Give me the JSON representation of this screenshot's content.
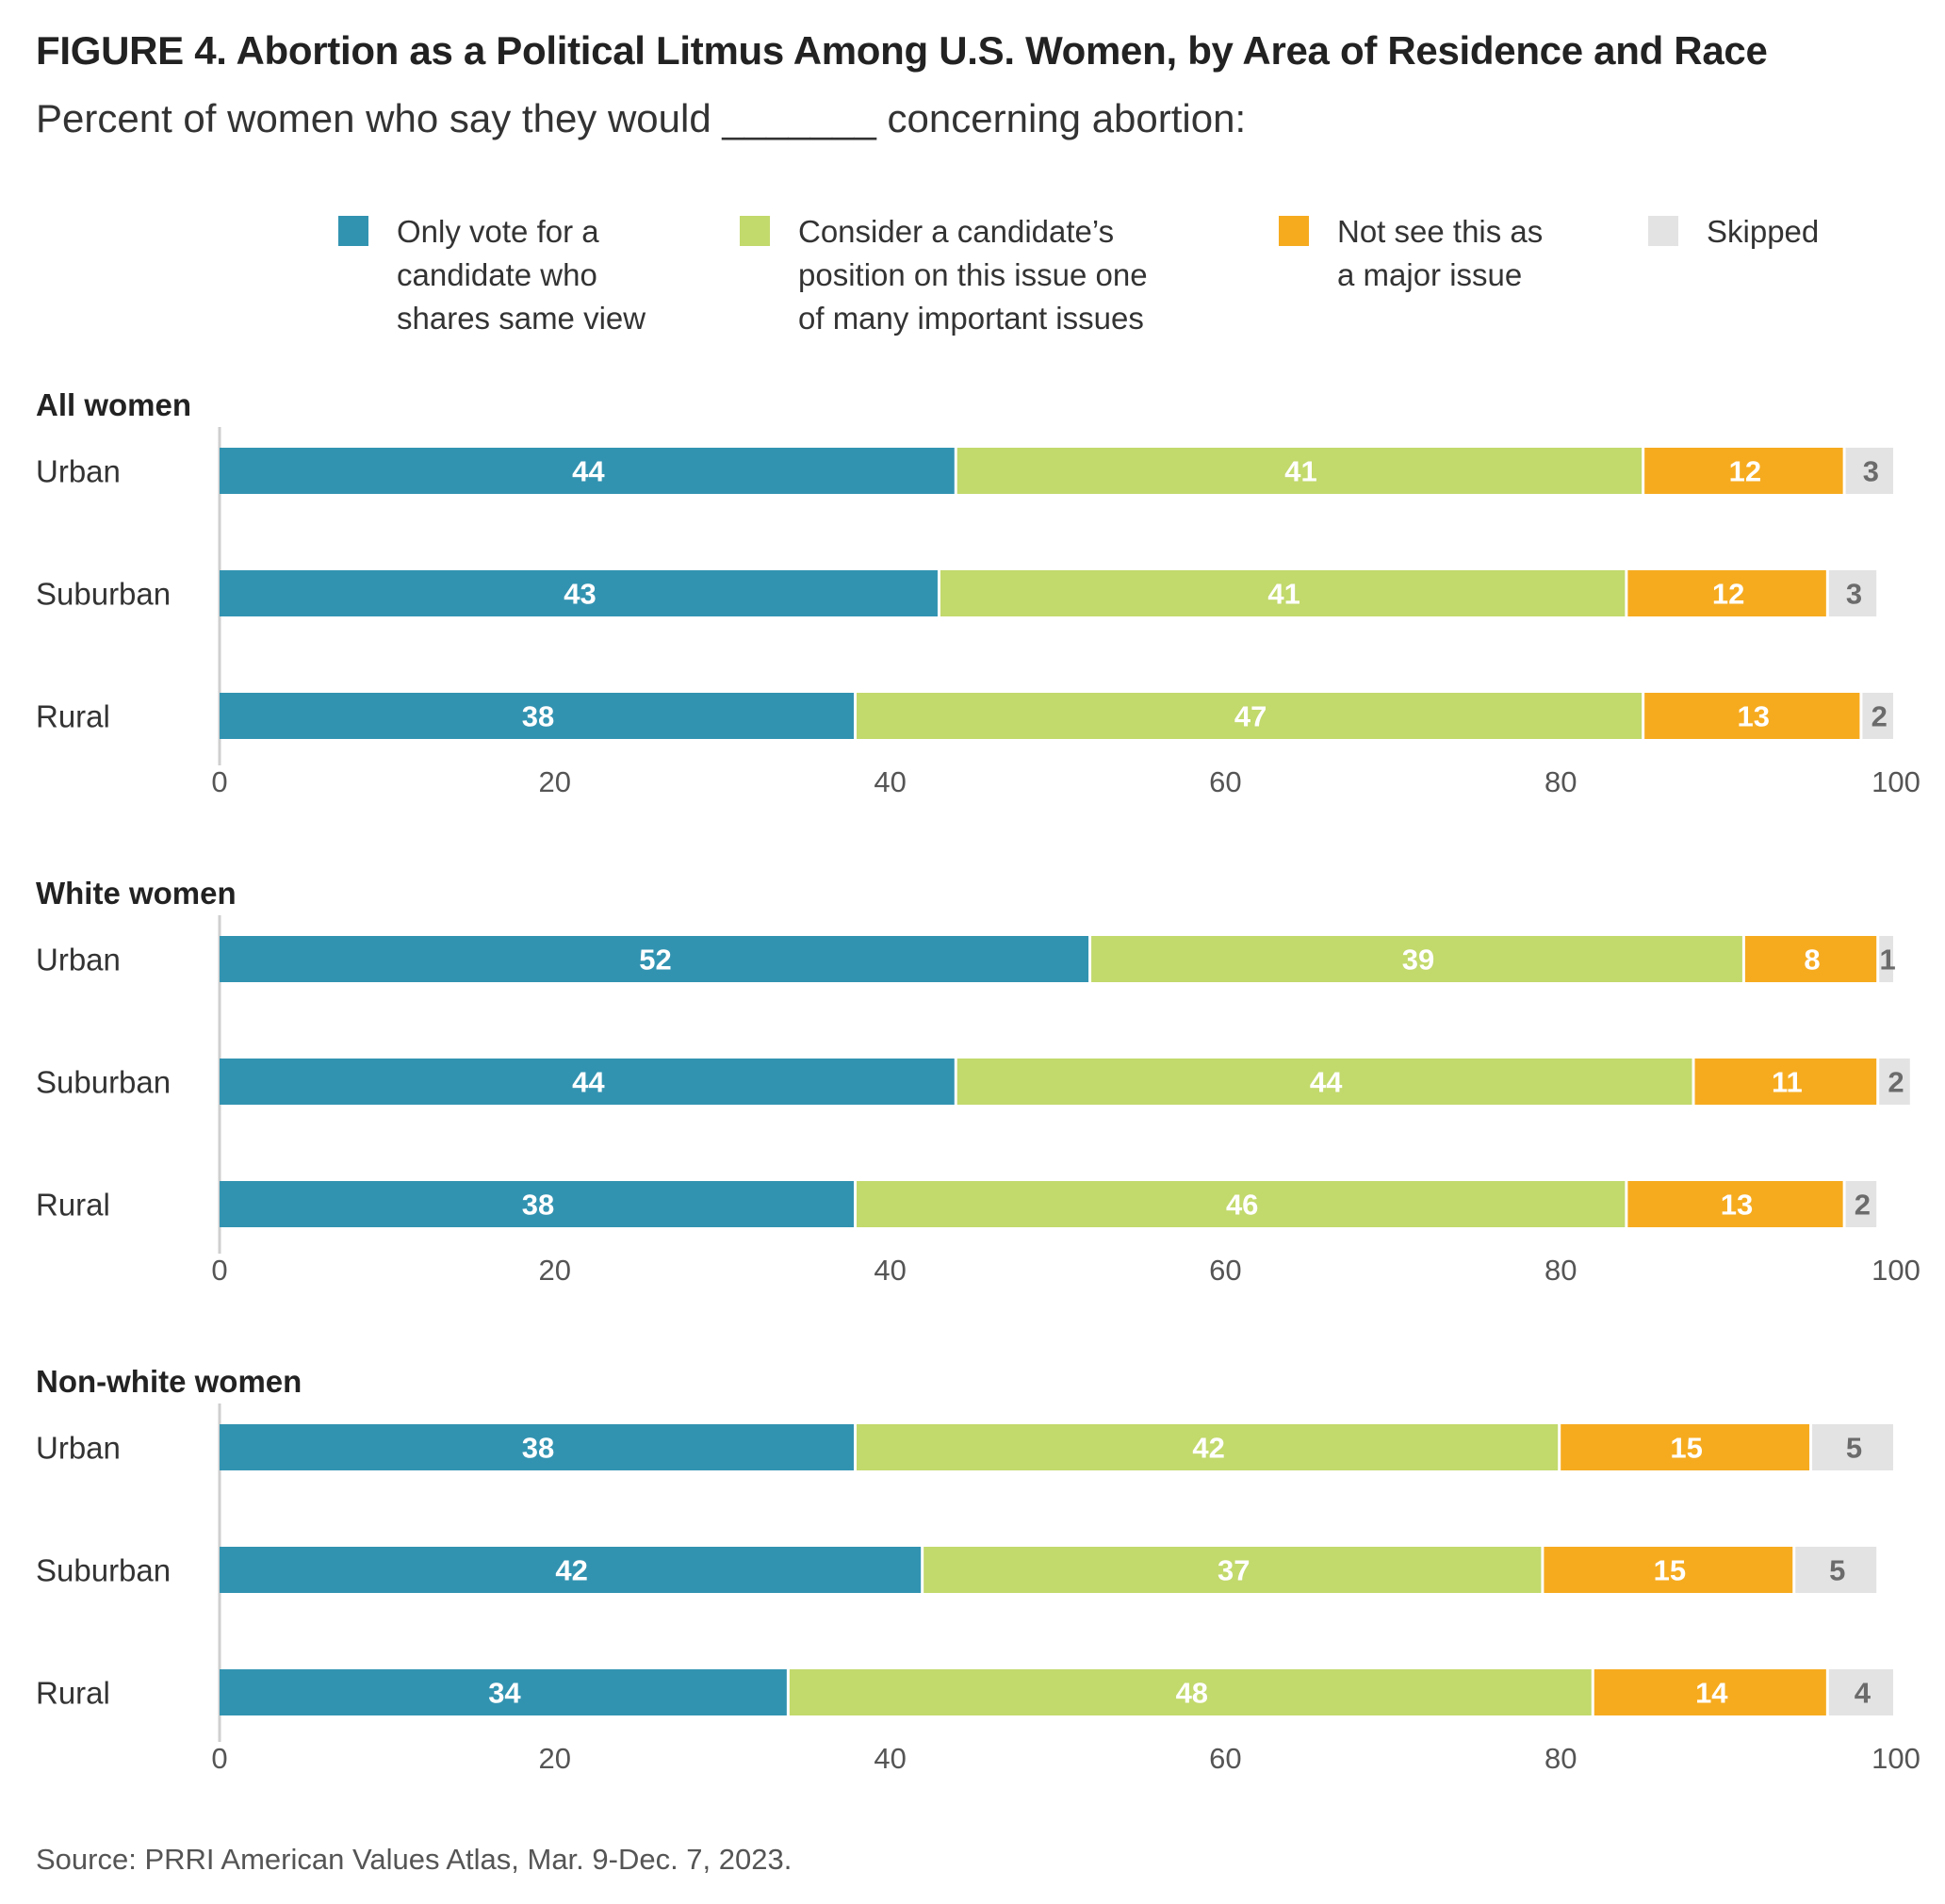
{
  "title": "FIGURE 4.  Abortion as a Political Litmus Among U.S. Women, by Area of Residence and Race",
  "subtitle": "Percent of women who say they would _______ concerning abortion:",
  "source": "Source: PRRI American Values Atlas, Mar. 9-Dec. 7, 2023.",
  "legend": [
    {
      "label": "Only vote for a\ncandidate who\nshares same view",
      "color": "#3293b1"
    },
    {
      "label": "Consider a candidate’s\nposition on this issue one\nof many important issues",
      "color": "#c2d96c"
    },
    {
      "label": "Not see this as\na major issue",
      "color": "#f6ab1f"
    },
    {
      "label": "Skipped",
      "color": "#e3e3e3"
    }
  ],
  "chart_data": {
    "type": "bar",
    "orientation": "horizontal",
    "stacked": true,
    "xlim": [
      0,
      100
    ],
    "xticks": [
      "0",
      "20",
      "40",
      "60",
      "80",
      "100"
    ],
    "series_names": [
      "Only vote for a candidate who shares same view",
      "Consider a candidate’s position on this issue one of many important issues",
      "Not see this as a major issue",
      "Skipped"
    ],
    "colors": [
      "#3293b1",
      "#c2d96c",
      "#f6ab1f",
      "#e3e3e3"
    ],
    "label_colors": [
      "#ffffff",
      "#ffffff",
      "#ffffff",
      "#6b6b6b"
    ],
    "panels": [
      {
        "title": "All women",
        "categories": [
          "Urban",
          "Suburban",
          "Rural"
        ],
        "values": [
          [
            44,
            41,
            12,
            3
          ],
          [
            43,
            41,
            12,
            3
          ],
          [
            38,
            47,
            13,
            2
          ]
        ]
      },
      {
        "title": "White women",
        "categories": [
          "Urban",
          "Suburban",
          "Rural"
        ],
        "values": [
          [
            52,
            39,
            8,
            1
          ],
          [
            44,
            44,
            11,
            2
          ],
          [
            38,
            46,
            13,
            2
          ]
        ]
      },
      {
        "title": "Non-white women",
        "categories": [
          "Urban",
          "Suburban",
          "Rural"
        ],
        "values": [
          [
            38,
            42,
            15,
            5
          ],
          [
            42,
            37,
            15,
            5
          ],
          [
            34,
            48,
            14,
            4
          ]
        ]
      }
    ]
  }
}
